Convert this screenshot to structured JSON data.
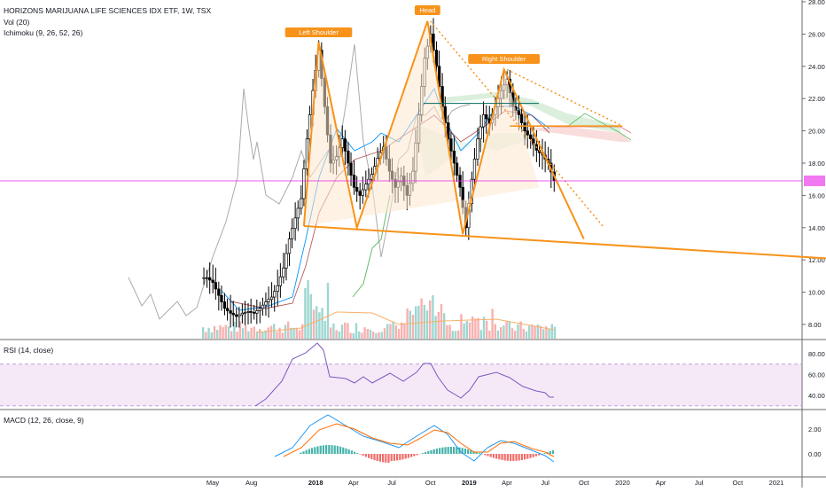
{
  "colors": {
    "bull": "#26a69a",
    "bear": "#ef5350",
    "candle": "#000000",
    "pattern": "#f7931a",
    "tenkan": "#0496ff",
    "kijun": "#991515",
    "lagging": "#459915",
    "leadA": "#0a8a0a",
    "leadB": "#e05050",
    "rsiBand": "#9c27b0",
    "rsiLine": "#7e57c2",
    "macdLine": "#2196f3",
    "signalLine": "#ff6d00",
    "vol_ma": "#f7b16b",
    "price_line": "#e91ee9",
    "gray_line": "#aaaaaa"
  },
  "header": {
    "title": "HORIZONS MARIJUANA LIFE SCIENCES IDX ETF, 1W, TSX",
    "vol": "Vol (20)",
    "ichimoku": "Ichimoku (9, 26, 52, 26)"
  },
  "rsi": {
    "label": "RSI (14, close)",
    "ticks": [
      "80.00",
      "60.00",
      "40.00"
    ],
    "upper": 70,
    "lower": 30
  },
  "macd": {
    "label": "MACD (12, 26, close, 9)",
    "ticks": [
      "2.00",
      "0.00"
    ]
  },
  "annotations": {
    "head": "Head",
    "left_shoulder": "Left Shoulder",
    "right_shoulder": "Right Shoulder"
  },
  "current_price": 16.9,
  "chart_data": {
    "type": "candlestick",
    "y_axis_ticks": [
      "28.00",
      "26.00",
      "24.00",
      "22.00",
      "20.00",
      "18.00",
      "16.00",
      "14.00",
      "12.00",
      "10.00",
      "8.00"
    ],
    "ylim": [
      7.2,
      28
    ],
    "x_tick_labels": [
      "May",
      "Aug",
      "2018",
      "Apr",
      "Jul",
      "Oct",
      "2019",
      "Apr",
      "Jul",
      "Oct",
      "2020",
      "Apr",
      "Jul",
      "Oct",
      "2021"
    ],
    "x_tick_dates": [
      "2017-05-01",
      "2017-08-01",
      "2018-01-01",
      "2018-04-01",
      "2018-07-01",
      "2018-10-01",
      "2019-01-01",
      "2019-04-01",
      "2019-07-01",
      "2019-10-01",
      "2020-01-01",
      "2020-04-01",
      "2020-07-01",
      "2020-10-01",
      "2021-01-01"
    ],
    "price": [
      [
        "2017-04-10",
        10.9
      ],
      [
        "2017-04-24",
        10.6
      ],
      [
        "2017-05-08",
        9.8
      ],
      [
        "2017-05-22",
        9.0
      ],
      [
        "2017-06-05",
        8.7
      ],
      [
        "2017-06-19",
        8.5
      ],
      [
        "2017-07-03",
        8.7
      ],
      [
        "2017-07-17",
        8.8
      ],
      [
        "2017-07-31",
        8.7
      ],
      [
        "2017-08-14",
        9.0
      ],
      [
        "2017-08-28",
        9.4
      ],
      [
        "2017-09-11",
        9.7
      ],
      [
        "2017-09-25",
        10.4
      ],
      [
        "2017-10-09",
        11.5
      ],
      [
        "2017-10-23",
        13.3
      ],
      [
        "2017-11-06",
        14.6
      ],
      [
        "2017-11-20",
        15.8
      ],
      [
        "2017-12-04",
        19.5
      ],
      [
        "2017-12-18",
        22.5
      ],
      [
        "2018-01-01",
        25.0
      ],
      [
        "2018-01-15",
        21.5
      ],
      [
        "2018-01-29",
        18.0
      ],
      [
        "2018-02-12",
        18.4
      ],
      [
        "2018-02-26",
        19.5
      ],
      [
        "2018-03-12",
        18.0
      ],
      [
        "2018-03-26",
        16.5
      ],
      [
        "2018-04-09",
        16.0
      ],
      [
        "2018-04-23",
        16.7
      ],
      [
        "2018-05-07",
        17.3
      ],
      [
        "2018-05-21",
        18.3
      ],
      [
        "2018-06-04",
        19.0
      ],
      [
        "2018-06-18",
        17.5
      ],
      [
        "2018-07-02",
        16.5
      ],
      [
        "2018-07-16",
        17.2
      ],
      [
        "2018-07-30",
        16.0
      ],
      [
        "2018-08-13",
        17.5
      ],
      [
        "2018-08-27",
        21.0
      ],
      [
        "2018-09-10",
        24.5
      ],
      [
        "2018-09-24",
        26.0
      ],
      [
        "2018-10-08",
        24.0
      ],
      [
        "2018-10-22",
        21.5
      ],
      [
        "2018-11-05",
        19.5
      ],
      [
        "2018-11-19",
        18.0
      ],
      [
        "2018-12-03",
        16.5
      ],
      [
        "2018-12-17",
        14.0
      ],
      [
        "2018-12-31",
        17.0
      ],
      [
        "2019-01-14",
        19.5
      ],
      [
        "2019-01-28",
        21.0
      ],
      [
        "2019-02-11",
        20.5
      ],
      [
        "2019-02-25",
        21.5
      ],
      [
        "2019-03-11",
        22.5
      ],
      [
        "2019-03-25",
        23.2
      ],
      [
        "2019-04-08",
        21.5
      ],
      [
        "2019-04-22",
        21.0
      ],
      [
        "2019-05-06",
        20.0
      ],
      [
        "2019-05-20",
        19.5
      ],
      [
        "2019-06-03",
        18.8
      ],
      [
        "2019-06-17",
        18.5
      ],
      [
        "2019-07-01",
        18.0
      ],
      [
        "2019-07-15",
        16.9
      ]
    ],
    "resistance_line": {
      "from": [
        "2019-04-08",
        20.3
      ],
      "to": [
        "2019-12-31",
        20.3
      ]
    },
    "neckline": {
      "from": [
        "2017-12-04",
        14.1
      ],
      "to": [
        "2021-02-15",
        12.1
      ]
    },
    "head_trend": {
      "from": [
        "2018-10-01",
        26.8
      ],
      "to": [
        "2019-11-15",
        14.1
      ]
    },
    "right_shoulder_trend": {
      "from": [
        "2019-04-01",
        23.8
      ],
      "to": [
        "2019-10-01",
        13.3
      ]
    }
  }
}
